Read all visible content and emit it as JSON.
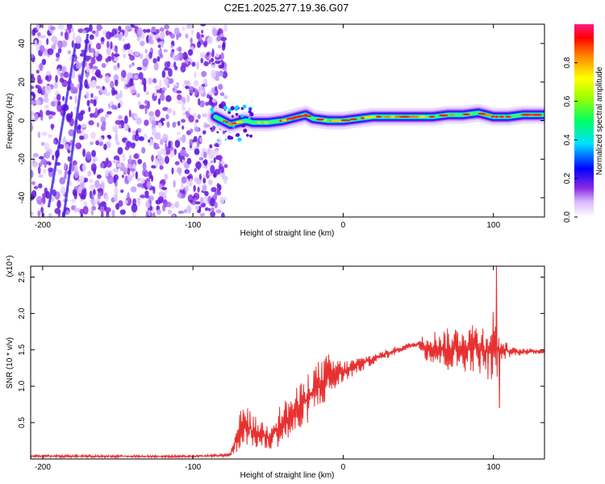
{
  "chart_data": [
    {
      "type": "heatmap",
      "title": "C2E1.2025.277.19.36.G07",
      "xlabel": "Height of straight line (km)",
      "ylabel": "Frequency (Hz)",
      "xlim": [
        -208,
        134
      ],
      "ylim": [
        -50,
        50
      ],
      "x_ticks": [
        -200,
        -100,
        0,
        100
      ],
      "y_ticks": [
        -40,
        -20,
        0,
        20,
        40
      ],
      "colorbar": {
        "label": "Normalized spectral amplitude",
        "range": [
          0,
          1
        ],
        "ticks": [
          "0.0",
          "0.2",
          "0.4",
          "0.6",
          "0.8"
        ],
        "tick_values": [
          0.0,
          0.2,
          0.4,
          0.6,
          0.8
        ]
      },
      "noise_region_x": [
        -208,
        -82
      ],
      "ridge": [
        {
          "x": -85,
          "y": 2
        },
        {
          "x": -80,
          "y": 0
        },
        {
          "x": -75,
          "y": -2
        },
        {
          "x": -70,
          "y": -1
        },
        {
          "x": -65,
          "y": 0
        },
        {
          "x": -60,
          "y": -1
        },
        {
          "x": -50,
          "y": -1
        },
        {
          "x": -40,
          "y": 0
        },
        {
          "x": -30,
          "y": 2
        },
        {
          "x": -25,
          "y": 3
        },
        {
          "x": -20,
          "y": 1
        },
        {
          "x": -10,
          "y": 0
        },
        {
          "x": 0,
          "y": 0
        },
        {
          "x": 10,
          "y": 1
        },
        {
          "x": 20,
          "y": 2
        },
        {
          "x": 40,
          "y": 2
        },
        {
          "x": 60,
          "y": 2
        },
        {
          "x": 70,
          "y": 3
        },
        {
          "x": 80,
          "y": 3
        },
        {
          "x": 90,
          "y": 4
        },
        {
          "x": 100,
          "y": 2
        },
        {
          "x": 110,
          "y": 2
        },
        {
          "x": 120,
          "y": 3
        },
        {
          "x": 134,
          "y": 3
        }
      ]
    },
    {
      "type": "line",
      "title": "",
      "xlabel": "Height of straight line (km)",
      "ylabel": "SNR (10 * v/v)",
      "y_multiplier": "(x10⁴)",
      "xlim": [
        -208,
        134
      ],
      "ylim": [
        0,
        2.65
      ],
      "x_ticks": [
        -200,
        -100,
        0,
        100
      ],
      "y_ticks": [
        0.5,
        1.0,
        1.5,
        2.0,
        2.5
      ],
      "y_tick_labels": [
        "0.5",
        "1.0",
        "1.5",
        "2.0",
        "2.5"
      ],
      "series": [
        {
          "name": "SNR",
          "color": "#e83030",
          "envelope": [
            {
              "x": -208,
              "lo": 0.02,
              "hi": 0.06
            },
            {
              "x": -100,
              "lo": 0.02,
              "hi": 0.05
            },
            {
              "x": -75,
              "lo": 0.03,
              "hi": 0.08
            },
            {
              "x": -70,
              "lo": 0.1,
              "hi": 0.55
            },
            {
              "x": -66,
              "lo": 0.2,
              "hi": 0.8
            },
            {
              "x": -60,
              "lo": 0.15,
              "hi": 0.6
            },
            {
              "x": -50,
              "lo": 0.1,
              "hi": 0.5
            },
            {
              "x": -40,
              "lo": 0.2,
              "hi": 0.8
            },
            {
              "x": -30,
              "lo": 0.3,
              "hi": 1.0
            },
            {
              "x": -20,
              "lo": 0.6,
              "hi": 1.3
            },
            {
              "x": -10,
              "lo": 0.8,
              "hi": 1.45
            },
            {
              "x": 0,
              "lo": 1.05,
              "hi": 1.35
            },
            {
              "x": 20,
              "lo": 1.3,
              "hi": 1.45
            },
            {
              "x": 40,
              "lo": 1.48,
              "hi": 1.58
            },
            {
              "x": 50,
              "lo": 1.55,
              "hi": 1.62
            },
            {
              "x": 55,
              "lo": 1.35,
              "hi": 1.75
            },
            {
              "x": 70,
              "lo": 1.2,
              "hi": 1.8
            },
            {
              "x": 85,
              "lo": 1.2,
              "hi": 1.9
            },
            {
              "x": 95,
              "lo": 1.15,
              "hi": 1.85
            },
            {
              "x": 100,
              "lo": 0.9,
              "hi": 2.1
            },
            {
              "x": 105,
              "lo": 1.35,
              "hi": 1.65
            },
            {
              "x": 115,
              "lo": 1.42,
              "hi": 1.52
            },
            {
              "x": 134,
              "lo": 1.45,
              "hi": 1.52
            }
          ],
          "peaks": [
            {
              "x": 102,
              "y": 2.65
            },
            {
              "x": 104,
              "y": 0.7
            }
          ]
        }
      ]
    }
  ]
}
